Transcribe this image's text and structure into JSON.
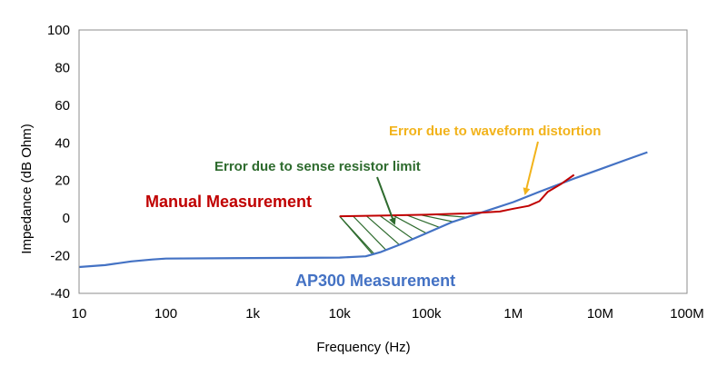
{
  "chart_data": {
    "type": "line",
    "title": "",
    "xlabel": "Frequency (Hz)",
    "ylabel": "Impedance (dB Ohm)",
    "x_scale": "log",
    "xlim": [
      10,
      100000000
    ],
    "ylim": [
      -40,
      100
    ],
    "x_ticks": [
      10,
      100,
      1000,
      10000,
      100000,
      1000000,
      10000000,
      100000000
    ],
    "x_tick_labels": [
      "10",
      "100",
      "1k",
      "10k",
      "100k",
      "1M",
      "10M",
      "100M"
    ],
    "y_ticks": [
      -40,
      -20,
      0,
      20,
      40,
      60,
      80,
      100
    ],
    "y_tick_labels": [
      "-40",
      "-20",
      "0",
      "20",
      "40",
      "60",
      "80",
      "100"
    ],
    "grid": false,
    "series": [
      {
        "name": "AP300 Measurement",
        "color": "#4472c4",
        "x": [
          10,
          20,
          40,
          70,
          100,
          1000,
          10000,
          20000,
          30000,
          50000,
          100000,
          200000,
          500000,
          1000000,
          2000000,
          5000000,
          10000000,
          20000000,
          35000000
        ],
        "y": [
          -26,
          -25,
          -23,
          -22,
          -21.5,
          -21.2,
          -21,
          -20.3,
          -18,
          -14,
          -8,
          -2,
          4,
          8.5,
          14,
          21,
          26,
          31,
          35
        ]
      },
      {
        "name": "Manual Measurement",
        "color": "#c00000",
        "x": [
          10000,
          30000,
          100000,
          300000,
          700000,
          1000000,
          1500000,
          2000000,
          2500000,
          3500000,
          5000000
        ],
        "y": [
          1,
          1.3,
          1.8,
          2.5,
          3.5,
          5,
          6.5,
          9,
          14,
          18,
          23
        ]
      }
    ],
    "annotations": [
      {
        "text": "Manual Measurement",
        "color": "#c00000"
      },
      {
        "text": "AP300 Measurement",
        "color": "#4472c4"
      },
      {
        "text": "Error due to sense resistor limit",
        "color": "#2e6b2e"
      },
      {
        "text": "Error due to waveform distortion",
        "color": "#f2b31b"
      }
    ]
  }
}
